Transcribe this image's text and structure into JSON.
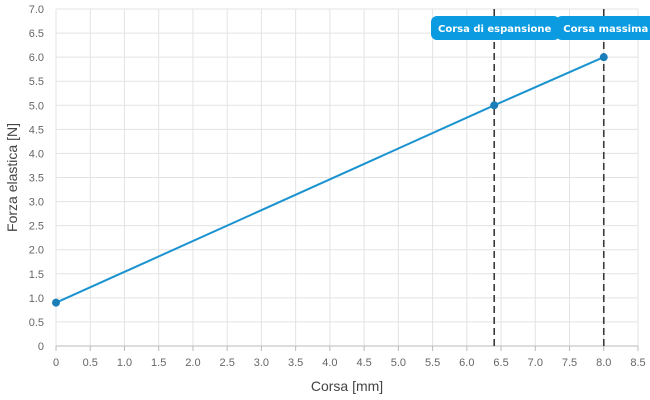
{
  "chart_data": {
    "type": "line",
    "xlabel": "Corsa [mm]",
    "ylabel": "Forza elastica [N]",
    "xlim": [
      0,
      8.5
    ],
    "ylim": [
      0,
      7.0
    ],
    "x_ticks": [
      "0",
      "0.5",
      "1.0",
      "1.5",
      "2.0",
      "2.5",
      "3.0",
      "3.5",
      "4.0",
      "4.5",
      "5.0",
      "5.5",
      "6.0",
      "6.5",
      "7.0",
      "7.5",
      "8.0",
      "8.5"
    ],
    "y_ticks": [
      "0",
      "0.5",
      "1.0",
      "1.5",
      "2.0",
      "2.5",
      "3.0",
      "3.5",
      "4.0",
      "4.5",
      "5.0",
      "5.5",
      "6.0",
      "6.5",
      "7.0"
    ],
    "grid": true,
    "series": [
      {
        "x": [
          0,
          6.4,
          8.0
        ],
        "y": [
          0.9,
          5.0,
          6.0
        ],
        "color": "#1a93d0"
      }
    ],
    "annotations": [
      {
        "x": 6.4,
        "label": "Corsa di espansione"
      },
      {
        "x": 8.0,
        "label": "Corsa massima"
      }
    ],
    "annotation_color": "#0a9be0"
  }
}
